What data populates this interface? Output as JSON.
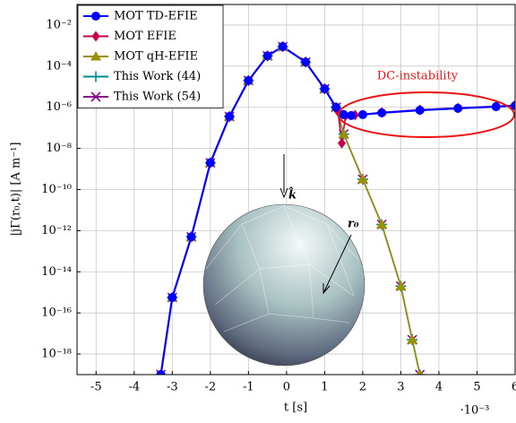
{
  "chart_data": {
    "type": "line",
    "xlabel": "t [s]",
    "ylabel": "|jΓ(r₀,t)| [A m⁻¹]",
    "x_offset_label": "·10⁻³",
    "xlim": [
      -5.5,
      6
    ],
    "xticks": [
      -5,
      -4,
      -3,
      -2,
      -1,
      0,
      1,
      2,
      3,
      4,
      5,
      6
    ],
    "ylim": [
      1e-19,
      0.1
    ],
    "log_y": true,
    "grid": true,
    "legend": "upper left",
    "yticks": [
      {
        "value": 1e-18,
        "label": "10⁻¹⁸"
      },
      {
        "value": 1e-16,
        "label": "10⁻¹⁶"
      },
      {
        "value": 1e-14,
        "label": "10⁻¹⁴"
      },
      {
        "value": 1e-12,
        "label": "10⁻¹²"
      },
      {
        "value": 1e-10,
        "label": "10⁻¹⁰"
      },
      {
        "value": 1e-08,
        "label": "10⁻⁸"
      },
      {
        "value": 1e-06,
        "label": "10⁻⁶"
      },
      {
        "value": 0.0001,
        "label": "10⁻⁴"
      },
      {
        "value": 0.01,
        "label": "10⁻²"
      }
    ],
    "annotations": [
      "DC-instability",
      "k̂",
      "r₀"
    ],
    "series": [
      {
        "name": "This Work (54)",
        "color": "#8b0a8b",
        "marker": "x",
        "x": [
          -3.3,
          -3,
          -2.5,
          -2,
          -1.5,
          -1,
          -0.5,
          -0.1,
          0.5,
          1,
          1.3,
          1.5,
          2,
          2.5,
          3,
          3.3,
          3.5
        ],
        "values": [
          1e-19,
          5.62e-16,
          5.01e-13,
          2e-09,
          3.55e-07,
          2e-05,
          0.000316,
          0.00089,
          0.000158,
          7.9e-06,
          1e-06,
          5e-08,
          3.16e-10,
          2e-12,
          2e-15,
          5e-18,
          1e-19
        ]
      },
      {
        "name": "This Work (44)",
        "color": "#008b8b",
        "marker": "plus",
        "x": [
          -3.3,
          -3,
          -2.5,
          -2,
          -1.5,
          -1,
          -0.5,
          -0.1,
          0.5,
          1,
          1.3,
          1.5,
          2,
          2.5,
          3,
          3.3,
          3.5
        ],
        "values": [
          1e-19,
          5.62e-16,
          5.01e-13,
          2e-09,
          3.55e-07,
          2e-05,
          0.000316,
          0.00089,
          0.000158,
          7.9e-06,
          1e-06,
          5e-08,
          3.16e-10,
          2e-12,
          2e-15,
          5e-18,
          1e-19
        ]
      },
      {
        "name": "MOT qH-EFIE",
        "color": "#9a9000",
        "marker": "triangle",
        "x": [
          -3.3,
          -3,
          -2.5,
          -2,
          -1.5,
          -1,
          -0.5,
          -0.1,
          0.5,
          1,
          1.3,
          1.5,
          2,
          2.5,
          3,
          3.3,
          3.5
        ],
        "values": [
          1e-19,
          5.62e-16,
          5.01e-13,
          2e-09,
          3.55e-07,
          2e-05,
          0.000316,
          0.00089,
          0.000158,
          7.9e-06,
          1e-06,
          5e-08,
          3.16e-10,
          2e-12,
          2e-15,
          5e-18,
          1e-19
        ]
      },
      {
        "name": "MOT EFIE",
        "color": "#c8004a",
        "marker": "diamond",
        "x": [
          -3.3,
          -3,
          -2.5,
          -2,
          -1.5,
          -1,
          -0.5,
          -0.1,
          0.5,
          1,
          1.35,
          1.45,
          1.55,
          1.8,
          2.5,
          3.5,
          4.5,
          5.5,
          6
        ],
        "values": [
          1e-19,
          5.62e-16,
          5.01e-13,
          2e-09,
          3.55e-07,
          2e-05,
          0.000316,
          0.00089,
          0.000158,
          7.9e-06,
          6.3e-07,
          1.8e-08,
          4e-07,
          4.2e-07,
          5.6e-07,
          7.6e-07,
          9.3e-07,
          1.12e-06,
          1.26e-06
        ]
      },
      {
        "name": "MOT TD-EFIE",
        "color": "#0000ff",
        "marker": "circle",
        "x": [
          -3.3,
          -3,
          -2.5,
          -2,
          -1.5,
          -1,
          -0.5,
          -0.1,
          0.5,
          1,
          1.3,
          1.5,
          1.7,
          2,
          2.5,
          3.5,
          4.5,
          5.5,
          6
        ],
        "values": [
          1e-19,
          5.62e-16,
          5.01e-13,
          2e-09,
          3.55e-07,
          2e-05,
          0.000316,
          0.00089,
          0.000158,
          7.9e-06,
          1e-06,
          4.4e-07,
          4e-07,
          4.4e-07,
          5.4e-07,
          7.2e-07,
          8.9e-07,
          1.07e-06,
          1.2e-06
        ]
      }
    ]
  }
}
